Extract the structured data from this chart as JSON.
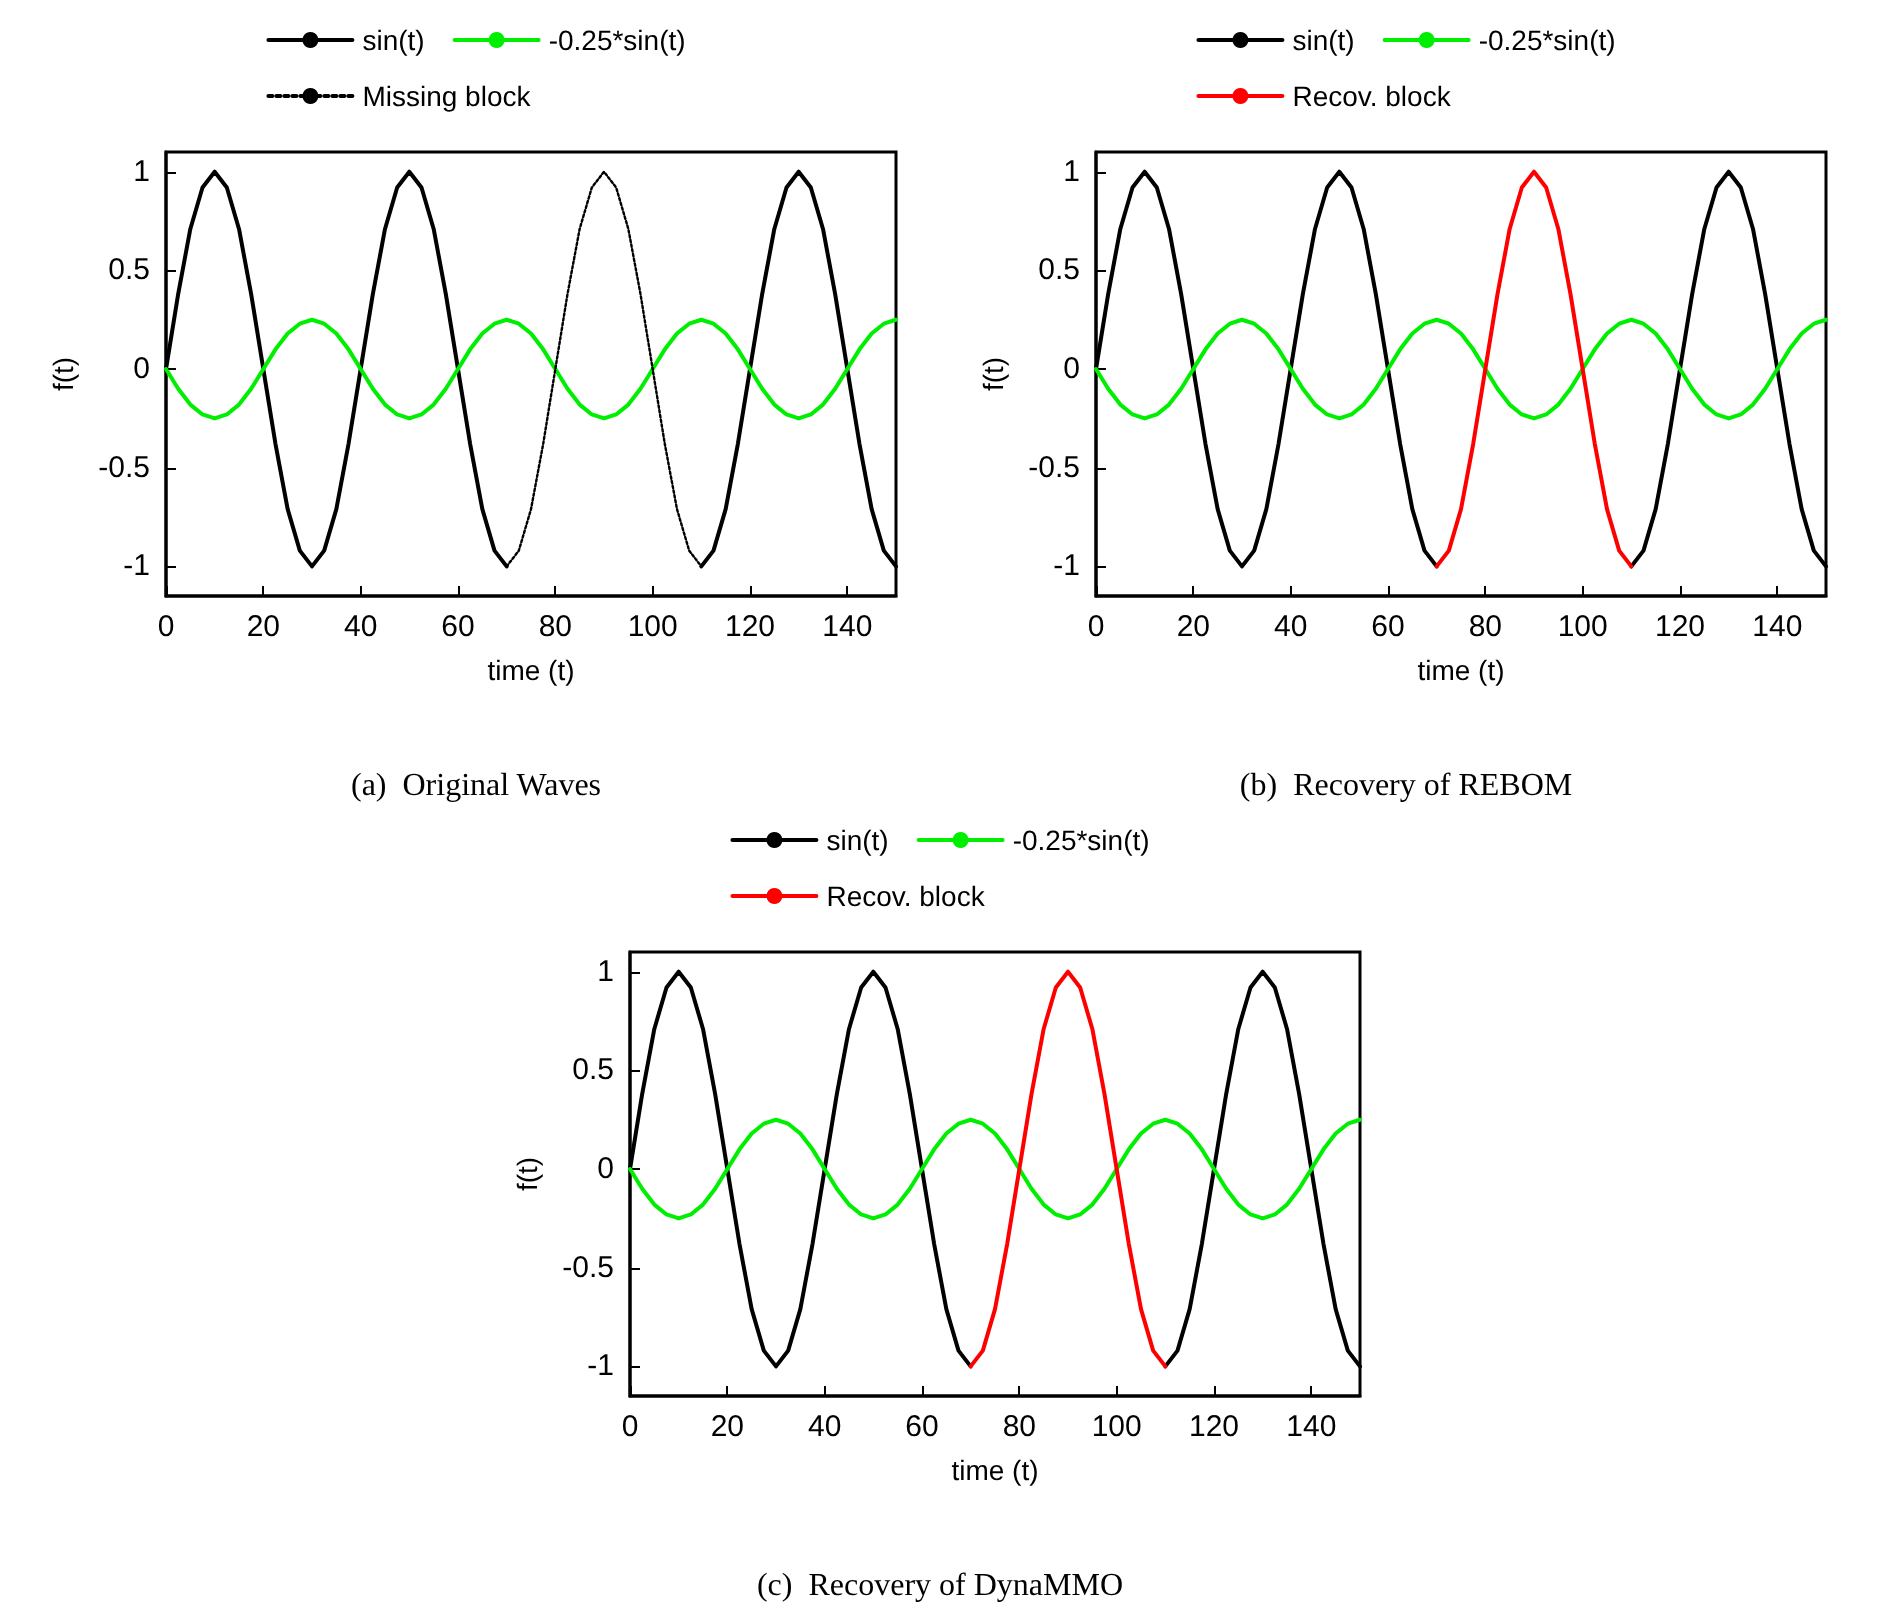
{
  "chart_data": [
    {
      "type": "line",
      "title": "(a)  Original Waves",
      "xlabel": "time (t)",
      "ylabel": "f(t)",
      "legend": "top",
      "grid": false,
      "xlim": [
        0,
        150
      ],
      "xticks": [
        0,
        20,
        40,
        60,
        80,
        100,
        120,
        140
      ],
      "ylim": [
        -1.15,
        1.1
      ],
      "yticks": [
        -1,
        -0.5,
        0,
        0.5,
        1
      ],
      "x": [
        0,
        2.5,
        5,
        7.5,
        10,
        12.5,
        15,
        17.5,
        20,
        22.5,
        25,
        27.5,
        30,
        32.5,
        35,
        37.5,
        40,
        42.5,
        45,
        47.5,
        50,
        52.5,
        55,
        57.5,
        60,
        62.5,
        65,
        67.5,
        70,
        72.5,
        75,
        77.5,
        80,
        82.5,
        85,
        87.5,
        90,
        92.5,
        95,
        97.5,
        100,
        102.5,
        105,
        107.5,
        110,
        112.5,
        115,
        117.5,
        120,
        122.5,
        125,
        127.5,
        130,
        132.5,
        135,
        137.5,
        140,
        142.5,
        145,
        147.5,
        150
      ],
      "series": [
        {
          "name": "sin(t)",
          "color": "#000000",
          "line_style": "solid",
          "values": [
            0,
            0.38,
            0.71,
            0.92,
            1,
            0.92,
            0.71,
            0.38,
            0,
            -0.38,
            -0.71,
            -0.92,
            -1,
            -0.92,
            -0.71,
            -0.38,
            0,
            0.38,
            0.71,
            0.92,
            1,
            0.92,
            0.71,
            0.38,
            0,
            -0.38,
            -0.71,
            -0.92,
            -1,
            null,
            null,
            null,
            null,
            null,
            null,
            null,
            null,
            null,
            null,
            null,
            null,
            null,
            null,
            null,
            -1,
            -0.92,
            -0.71,
            -0.38,
            0,
            0.38,
            0.71,
            0.92,
            1,
            0.92,
            0.71,
            0.38,
            0,
            -0.38,
            -0.71,
            -0.92,
            -1
          ]
        },
        {
          "name": "-0.25*sin(t)",
          "color": "#00ee00",
          "line_style": "solid",
          "values": [
            0,
            -0.1,
            -0.18,
            -0.23,
            -0.25,
            -0.23,
            -0.18,
            -0.1,
            0,
            0.1,
            0.18,
            0.23,
            0.25,
            0.23,
            0.18,
            0.1,
            0,
            -0.1,
            -0.18,
            -0.23,
            -0.25,
            -0.23,
            -0.18,
            -0.1,
            0,
            0.1,
            0.18,
            0.23,
            0.25,
            0.23,
            0.18,
            0.1,
            0,
            -0.1,
            -0.18,
            -0.23,
            -0.25,
            -0.23,
            -0.18,
            -0.1,
            0,
            0.1,
            0.18,
            0.23,
            0.25,
            0.23,
            0.18,
            0.1,
            0,
            -0.1,
            -0.18,
            -0.23,
            -0.25,
            -0.23,
            -0.18,
            -0.1,
            0,
            0.1,
            0.18,
            0.23,
            0.25
          ]
        },
        {
          "name": "Missing block",
          "color": "#000000",
          "line_style": "dotted",
          "values": [
            null,
            null,
            null,
            null,
            null,
            null,
            null,
            null,
            null,
            null,
            null,
            null,
            null,
            null,
            null,
            null,
            null,
            null,
            null,
            null,
            null,
            null,
            null,
            null,
            null,
            null,
            null,
            null,
            -1,
            -0.92,
            -0.71,
            -0.38,
            0,
            0.38,
            0.71,
            0.92,
            1,
            0.92,
            0.71,
            0.38,
            0,
            -0.38,
            -0.71,
            -0.92,
            -1,
            null,
            null,
            null,
            null,
            null,
            null,
            null,
            null,
            null,
            null,
            null,
            null,
            null,
            null,
            null,
            null
          ]
        }
      ]
    },
    {
      "type": "line",
      "title": "(b)  Recovery of REBOM",
      "xlabel": "time (t)",
      "ylabel": "f(t)",
      "legend": "top",
      "grid": false,
      "xlim": [
        0,
        150
      ],
      "xticks": [
        0,
        20,
        40,
        60,
        80,
        100,
        120,
        140
      ],
      "ylim": [
        -1.15,
        1.1
      ],
      "yticks": [
        -1,
        -0.5,
        0,
        0.5,
        1
      ],
      "x": [
        0,
        2.5,
        5,
        7.5,
        10,
        12.5,
        15,
        17.5,
        20,
        22.5,
        25,
        27.5,
        30,
        32.5,
        35,
        37.5,
        40,
        42.5,
        45,
        47.5,
        50,
        52.5,
        55,
        57.5,
        60,
        62.5,
        65,
        67.5,
        70,
        72.5,
        75,
        77.5,
        80,
        82.5,
        85,
        87.5,
        90,
        92.5,
        95,
        97.5,
        100,
        102.5,
        105,
        107.5,
        110,
        112.5,
        115,
        117.5,
        120,
        122.5,
        125,
        127.5,
        130,
        132.5,
        135,
        137.5,
        140,
        142.5,
        145,
        147.5,
        150
      ],
      "series": [
        {
          "name": "sin(t)",
          "color": "#000000",
          "line_style": "solid",
          "values": [
            0,
            0.38,
            0.71,
            0.92,
            1,
            0.92,
            0.71,
            0.38,
            0,
            -0.38,
            -0.71,
            -0.92,
            -1,
            -0.92,
            -0.71,
            -0.38,
            0,
            0.38,
            0.71,
            0.92,
            1,
            0.92,
            0.71,
            0.38,
            0,
            -0.38,
            -0.71,
            -0.92,
            -1,
            null,
            null,
            null,
            null,
            null,
            null,
            null,
            null,
            null,
            null,
            null,
            null,
            null,
            null,
            null,
            -1,
            -0.92,
            -0.71,
            -0.38,
            0,
            0.38,
            0.71,
            0.92,
            1,
            0.92,
            0.71,
            0.38,
            0,
            -0.38,
            -0.71,
            -0.92,
            -1
          ]
        },
        {
          "name": "-0.25*sin(t)",
          "color": "#00ee00",
          "line_style": "solid",
          "values": [
            0,
            -0.1,
            -0.18,
            -0.23,
            -0.25,
            -0.23,
            -0.18,
            -0.1,
            0,
            0.1,
            0.18,
            0.23,
            0.25,
            0.23,
            0.18,
            0.1,
            0,
            -0.1,
            -0.18,
            -0.23,
            -0.25,
            -0.23,
            -0.18,
            -0.1,
            0,
            0.1,
            0.18,
            0.23,
            0.25,
            0.23,
            0.18,
            0.1,
            0,
            -0.1,
            -0.18,
            -0.23,
            -0.25,
            -0.23,
            -0.18,
            -0.1,
            0,
            0.1,
            0.18,
            0.23,
            0.25,
            0.23,
            0.18,
            0.1,
            0,
            -0.1,
            -0.18,
            -0.23,
            -0.25,
            -0.23,
            -0.18,
            -0.1,
            0,
            0.1,
            0.18,
            0.23,
            0.25
          ]
        },
        {
          "name": "Recov. block",
          "color": "#ff0000",
          "line_style": "solid",
          "values": [
            null,
            null,
            null,
            null,
            null,
            null,
            null,
            null,
            null,
            null,
            null,
            null,
            null,
            null,
            null,
            null,
            null,
            null,
            null,
            null,
            null,
            null,
            null,
            null,
            null,
            null,
            null,
            null,
            -1,
            -0.92,
            -0.71,
            -0.38,
            0,
            0.38,
            0.71,
            0.92,
            1,
            0.92,
            0.71,
            0.38,
            0,
            -0.38,
            -0.71,
            -0.92,
            -1,
            null,
            null,
            null,
            null,
            null,
            null,
            null,
            null,
            null,
            null,
            null,
            null,
            null,
            null,
            null,
            null
          ]
        }
      ]
    },
    {
      "type": "line",
      "title": "(c)  Recovery of DynaMMO",
      "xlabel": "time (t)",
      "ylabel": "f(t)",
      "legend": "top",
      "grid": false,
      "xlim": [
        0,
        150
      ],
      "xticks": [
        0,
        20,
        40,
        60,
        80,
        100,
        120,
        140
      ],
      "ylim": [
        -1.15,
        1.1
      ],
      "yticks": [
        -1,
        -0.5,
        0,
        0.5,
        1
      ],
      "x": [
        0,
        2.5,
        5,
        7.5,
        10,
        12.5,
        15,
        17.5,
        20,
        22.5,
        25,
        27.5,
        30,
        32.5,
        35,
        37.5,
        40,
        42.5,
        45,
        47.5,
        50,
        52.5,
        55,
        57.5,
        60,
        62.5,
        65,
        67.5,
        70,
        72.5,
        75,
        77.5,
        80,
        82.5,
        85,
        87.5,
        90,
        92.5,
        95,
        97.5,
        100,
        102.5,
        105,
        107.5,
        110,
        112.5,
        115,
        117.5,
        120,
        122.5,
        125,
        127.5,
        130,
        132.5,
        135,
        137.5,
        140,
        142.5,
        145,
        147.5,
        150
      ],
      "series": [
        {
          "name": "sin(t)",
          "color": "#000000",
          "line_style": "solid",
          "values": [
            0,
            0.38,
            0.71,
            0.92,
            1,
            0.92,
            0.71,
            0.38,
            0,
            -0.38,
            -0.71,
            -0.92,
            -1,
            -0.92,
            -0.71,
            -0.38,
            0,
            0.38,
            0.71,
            0.92,
            1,
            0.92,
            0.71,
            0.38,
            0,
            -0.38,
            -0.71,
            -0.92,
            -1,
            null,
            null,
            null,
            null,
            null,
            null,
            null,
            null,
            null,
            null,
            null,
            null,
            null,
            null,
            null,
            -1,
            -0.92,
            -0.71,
            -0.38,
            0,
            0.38,
            0.71,
            0.92,
            1,
            0.92,
            0.71,
            0.38,
            0,
            -0.38,
            -0.71,
            -0.92,
            -1
          ]
        },
        {
          "name": "-0.25*sin(t)",
          "color": "#00ee00",
          "line_style": "solid",
          "values": [
            0,
            -0.1,
            -0.18,
            -0.23,
            -0.25,
            -0.23,
            -0.18,
            -0.1,
            0,
            0.1,
            0.18,
            0.23,
            0.25,
            0.23,
            0.18,
            0.1,
            0,
            -0.1,
            -0.18,
            -0.23,
            -0.25,
            -0.23,
            -0.18,
            -0.1,
            0,
            0.1,
            0.18,
            0.23,
            0.25,
            0.23,
            0.18,
            0.1,
            0,
            -0.1,
            -0.18,
            -0.23,
            -0.25,
            -0.23,
            -0.18,
            -0.1,
            0,
            0.1,
            0.18,
            0.23,
            0.25,
            0.23,
            0.18,
            0.1,
            0,
            -0.1,
            -0.18,
            -0.23,
            -0.25,
            -0.23,
            -0.18,
            -0.1,
            0,
            0.1,
            0.18,
            0.23,
            0.25
          ]
        },
        {
          "name": "Recov. block",
          "color": "#ff0000",
          "line_style": "solid",
          "values": [
            null,
            null,
            null,
            null,
            null,
            null,
            null,
            null,
            null,
            null,
            null,
            null,
            null,
            null,
            null,
            null,
            null,
            null,
            null,
            null,
            null,
            null,
            null,
            null,
            null,
            null,
            null,
            null,
            -1,
            -0.92,
            -0.71,
            -0.38,
            0,
            0.38,
            0.71,
            0.92,
            1,
            0.92,
            0.71,
            0.38,
            0,
            -0.38,
            -0.71,
            -0.92,
            -1,
            null,
            null,
            null,
            null,
            null,
            null,
            null,
            null,
            null,
            null,
            null,
            null,
            null,
            null,
            null,
            null
          ]
        }
      ]
    }
  ]
}
